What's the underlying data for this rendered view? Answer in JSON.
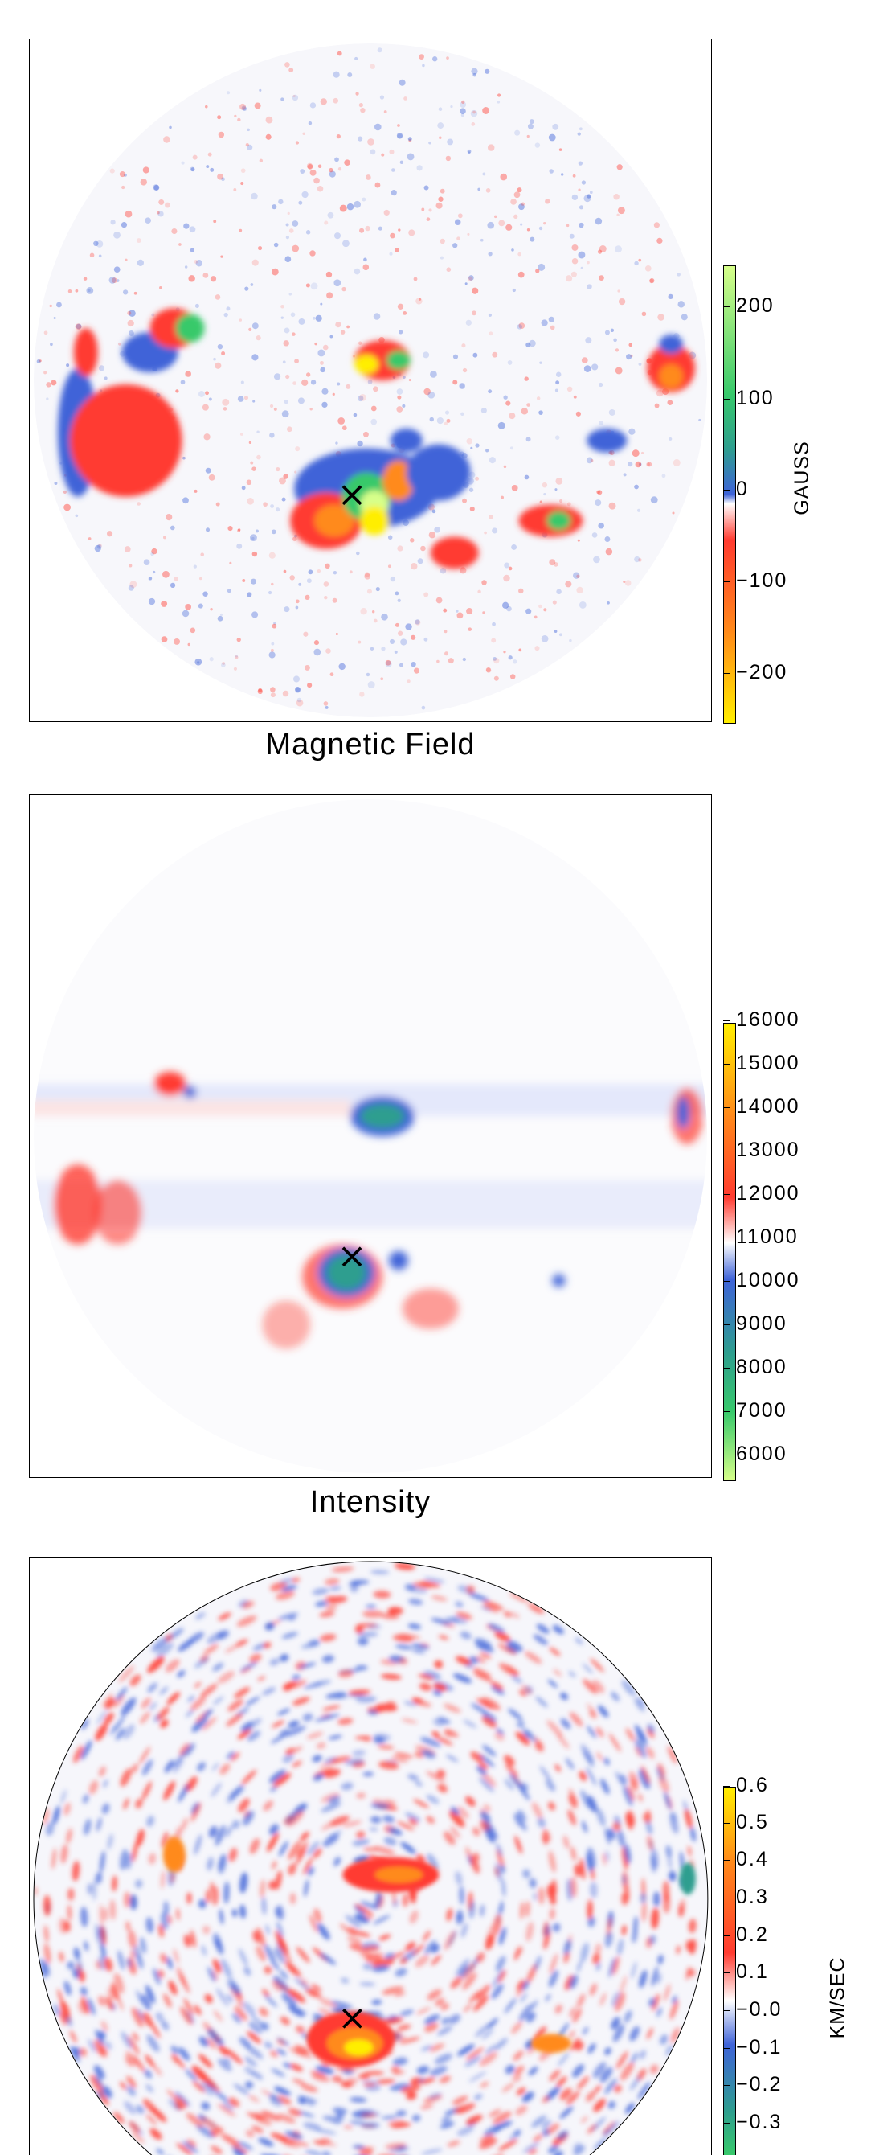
{
  "panels": [
    {
      "caption": "Magnetic Field",
      "unit": "GAUSS",
      "ticks": [
        "200",
        "100",
        "0",
        "−100",
        "−200"
      ],
      "colorbar": [
        "#d7ff8a",
        "#38c96b",
        "#2e9e8f",
        "#3f63d8",
        "#ffffff",
        "#ff3b30",
        "#ff8a1a",
        "#ffee00"
      ],
      "marker": "×"
    },
    {
      "caption": "Intensity",
      "unit": "",
      "ticks": [
        "16000",
        "15000",
        "14000",
        "13000",
        "12000",
        "11000",
        "10000",
        "9000",
        "8000",
        "7000",
        "6000"
      ],
      "colorbar": [
        "#ffee00",
        "#ff8a1a",
        "#ff3b30",
        "#ffffff",
        "#3f63d8",
        "#2e9e8f",
        "#38c96b",
        "#d7ff8a"
      ],
      "marker": "×"
    },
    {
      "caption": "",
      "unit": "KM/SEC",
      "ticks": [
        "0.6",
        "0.5",
        "0.4",
        "0.3",
        "0.2",
        "0.1",
        "−0.0",
        "−0.1",
        "−0.2",
        "−0.3"
      ],
      "colorbar": [
        "#ffee00",
        "#ff8a1a",
        "#ff3b30",
        "#ffffff",
        "#3f63d8",
        "#2e9e8f",
        "#38c96b"
      ],
      "marker": "×"
    }
  ]
}
